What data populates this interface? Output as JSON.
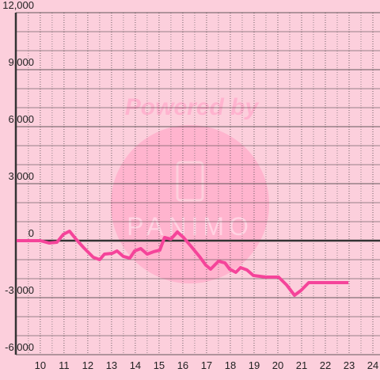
{
  "chart_data": {
    "type": "line",
    "watermark": {
      "top": "Powered by",
      "brand": "PANIMO"
    },
    "x": [
      9.0,
      10.0,
      10.37,
      10.7,
      10.97,
      11.23,
      11.5,
      11.83,
      12.23,
      12.5,
      12.7,
      13.03,
      13.23,
      13.5,
      13.77,
      13.97,
      14.23,
      14.5,
      14.77,
      15.03,
      15.23,
      15.5,
      15.77,
      16.03,
      16.37,
      16.7,
      16.97,
      17.17,
      17.5,
      17.77,
      17.97,
      18.23,
      18.43,
      18.7,
      18.97,
      19.5,
      20.03,
      20.37,
      20.7,
      20.97,
      21.3,
      22.97
    ],
    "series": [
      {
        "color": "#f5449a",
        "values": [
          0,
          0,
          -125,
          -83,
          333,
          500,
          83,
          -375,
          -875,
          -1000,
          -708,
          -667,
          -542,
          -833,
          -917,
          -542,
          -417,
          -708,
          -583,
          -500,
          167,
          83,
          458,
          167,
          -333,
          -833,
          -1292,
          -1500,
          -1083,
          -1167,
          -1500,
          -1667,
          -1417,
          -1542,
          -1833,
          -1917,
          -1917,
          -2333,
          -2875,
          -2625,
          -2208,
          -2208
        ]
      }
    ],
    "xlim": [
      8.97,
      24.3
    ],
    "ylim": [
      -6000,
      12000
    ],
    "xticks": [
      10,
      11,
      12,
      13,
      14,
      15,
      16,
      17,
      18,
      19,
      20,
      21,
      22,
      23,
      24
    ],
    "yticks": [
      {
        "value": -6000,
        "label": "-6,000"
      },
      {
        "value": -3000,
        "label": "-3,000"
      },
      0,
      {
        "value": 3000,
        "label": "3,000"
      },
      {
        "value": 6000,
        "label": "6,000"
      },
      {
        "value": 9000,
        "label": "9,000"
      },
      {
        "value": 12000,
        "label": "12,000"
      }
    ],
    "yminorticks": [
      -5000,
      -4000,
      -2000,
      -1000,
      1000,
      2000,
      4000,
      5000,
      7000,
      8000,
      10000,
      11000
    ],
    "xminorticks": [
      9.5,
      10.5,
      11.5,
      12.5,
      13.5,
      14.5,
      15.5,
      16.5,
      17.5,
      18.5,
      19.5,
      20.5,
      21.5,
      22.5,
      23.5
    ],
    "grid": true
  }
}
